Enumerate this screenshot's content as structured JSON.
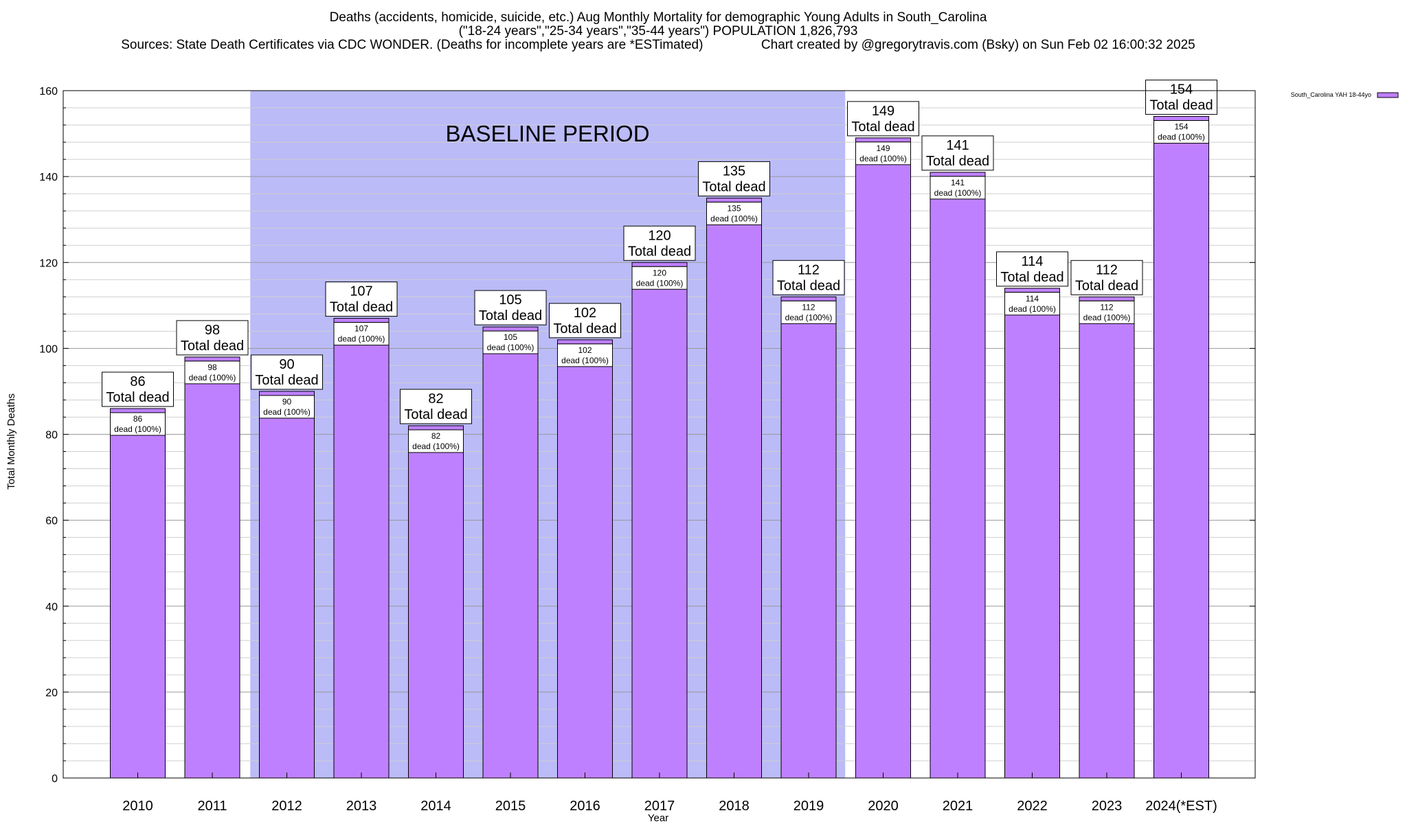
{
  "chart_data": {
    "type": "bar",
    "title_lines": [
      "Deaths (accidents, homicide, suicide, etc.) Aug Monthly Mortality for demographic Young Adults in South_Carolina",
      "(\"18-24 years\",\"25-34 years\",\"35-44 years\") POPULATION 1,826,793",
      "Sources: State Death Certificates via CDC WONDER. (Deaths for incomplete years are *ESTimated)                Chart created by @gregorytravis.com (Bsky) on Sun Feb 02 16:00:32 2025"
    ],
    "xlabel": "Year",
    "ylabel": "Total Monthly Deaths",
    "ylim": [
      0,
      160
    ],
    "yticks": [
      0,
      20,
      40,
      60,
      80,
      100,
      120,
      140,
      160
    ],
    "y_minor_step": 4,
    "grid": true,
    "categories": [
      "2010",
      "2011",
      "2012",
      "2013",
      "2014",
      "2015",
      "2016",
      "2017",
      "2018",
      "2019",
      "2020",
      "2021",
      "2022",
      "2023",
      "2024(*EST)"
    ],
    "series": [
      {
        "name": "South_Carolina YAH 18-44yo",
        "values": [
          86,
          98,
          90,
          107,
          82,
          105,
          102,
          120,
          135,
          112,
          149,
          141,
          114,
          112,
          154
        ],
        "color": "#bf80ff"
      }
    ],
    "bar_top_label_suffix": "Total dead",
    "bar_inner_label_suffix": "dead (100%)",
    "baseline_period": {
      "label": "BASELINE PERIOD",
      "start_category": "2012",
      "end_category": "2019",
      "color": "#bbbbf8"
    },
    "legend_placement": "top-right"
  }
}
